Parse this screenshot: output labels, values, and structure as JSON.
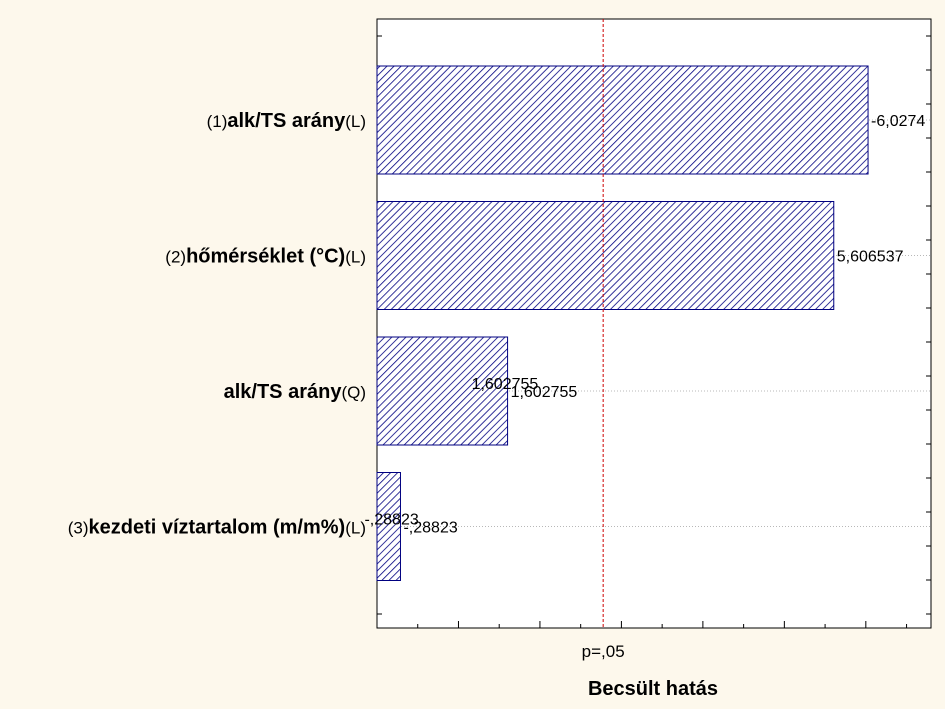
{
  "chart_data": {
    "type": "bar",
    "orientation": "horizontal",
    "xlabel": "Becsült hatás",
    "threshold": {
      "label": "p=,05",
      "value": 2.776,
      "color": "#cc0000",
      "style": "dashed"
    },
    "categories": [
      {
        "prefix": "(1)",
        "name": "alk/TS arány",
        "suffix": "(L)"
      },
      {
        "prefix": "(2)",
        "name": "hőmérséklet (°C)",
        "suffix": "(L)"
      },
      {
        "prefix": "",
        "name": "alk/TS arány",
        "suffix": "(Q)"
      },
      {
        "prefix": "(3)",
        "name": "kezdeti víztartalom (m/m%)",
        "suffix": "(L)"
      }
    ],
    "values": [
      6.0274,
      5.606537,
      1.602755,
      0.28823
    ],
    "value_labels": [
      "-6,0274",
      "5,606537",
      "1,602755",
      "-,28823"
    ],
    "inner_value_labels": [
      "",
      "",
      "1,602755",
      "-,28823"
    ],
    "xlim": [
      0,
      6.8
    ],
    "grid": true,
    "bar_fill": "hatched",
    "bar_color": "#000080",
    "background": "#fdf8ec"
  }
}
